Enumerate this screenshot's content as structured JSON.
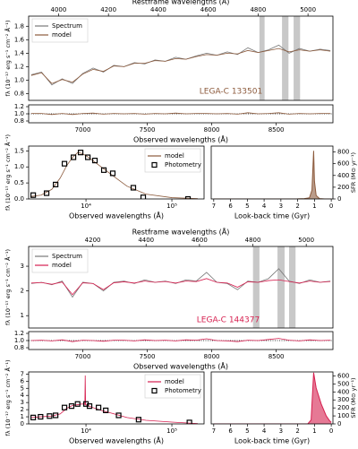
{
  "chart_data": [
    {
      "type": "line",
      "x2label": "Restframe wavelengths (Å)",
      "x2lim": [
        3880,
        5100
      ],
      "x2ticks": [
        4000,
        4200,
        4400,
        4600,
        4800,
        5000
      ],
      "ylabel": "fλ (10⁻¹⁷ erg s⁻¹ cm⁻² Å⁻¹)",
      "xlim": [
        6580,
        8940
      ],
      "ylim": [
        0.7,
        1.95
      ],
      "yticks": [
        0.8,
        {
          "value": 1,
          "label": "1.0"
        },
        1.2,
        1.4,
        1.6,
        1.8
      ],
      "annotation": "LEGA-C 133501",
      "annotation_color": "#8c5a3c",
      "spans": [
        [
          8370,
          8410
        ],
        [
          8545,
          8595
        ],
        [
          8635,
          8685
        ]
      ],
      "legend": "upper left",
      "x": [
        6600,
        6680,
        6760,
        6840,
        6920,
        7000,
        7080,
        7160,
        7240,
        7320,
        7400,
        7480,
        7560,
        7640,
        7720,
        7800,
        7880,
        7960,
        8040,
        8120,
        8200,
        8280,
        8360,
        8440,
        8520,
        8600,
        8680,
        8760,
        8840,
        8920
      ],
      "series": [
        {
          "name": "Spectrum",
          "color": "#777777",
          "style": "line",
          "values": [
            1.08,
            1.12,
            0.93,
            1.02,
            0.95,
            1.1,
            1.18,
            1.12,
            1.22,
            1.2,
            1.26,
            1.24,
            1.3,
            1.28,
            1.34,
            1.31,
            1.36,
            1.4,
            1.37,
            1.42,
            1.38,
            1.48,
            1.41,
            1.45,
            1.52,
            1.4,
            1.47,
            1.43,
            1.46,
            1.44
          ]
        },
        {
          "name": "model",
          "color": "#8c5a3c",
          "style": "line",
          "values": [
            1.07,
            1.11,
            0.95,
            1.01,
            0.97,
            1.09,
            1.16,
            1.13,
            1.21,
            1.2,
            1.25,
            1.25,
            1.29,
            1.28,
            1.32,
            1.31,
            1.35,
            1.38,
            1.37,
            1.4,
            1.39,
            1.44,
            1.41,
            1.44,
            1.47,
            1.42,
            1.45,
            1.43,
            1.45,
            1.43
          ]
        }
      ]
    },
    {
      "type": "line",
      "xlabel": "Observed wavelengths (Å)",
      "xlim": [
        6580,
        8940
      ],
      "xticks": [
        7000,
        7500,
        8000,
        8500
      ],
      "ylim": [
        0.75,
        1.25
      ],
      "yticks": [
        0.8,
        {
          "value": 1,
          "label": "1.0"
        },
        1.2
      ],
      "refline": 1,
      "x": [
        6600,
        6680,
        6760,
        6840,
        6920,
        7000,
        7080,
        7160,
        7240,
        7320,
        7400,
        7480,
        7560,
        7640,
        7720,
        7800,
        7880,
        7960,
        8040,
        8120,
        8200,
        8280,
        8360,
        8440,
        8520,
        8600,
        8680,
        8760,
        8840,
        8920
      ],
      "series": [
        {
          "color": "#8c5a3c",
          "style": "line",
          "values": [
            1.01,
            1.01,
            0.98,
            1.01,
            0.98,
            1.01,
            1.02,
            0.99,
            1.01,
            1.0,
            1.01,
            0.99,
            1.01,
            1.0,
            1.02,
            1.0,
            1.01,
            1.01,
            1.0,
            1.01,
            0.99,
            1.03,
            1.0,
            1.01,
            1.03,
            0.99,
            1.01,
            1.0,
            1.01,
            1.01
          ]
        }
      ]
    },
    {
      "type": "line",
      "xlabel": "Observed wavelengths (Å)",
      "ylabel": "fλ (10⁻¹⁷ erg s⁻¹ cm⁻² Å⁻¹)",
      "xscale": "log",
      "xlim": [
        2150,
        237000
      ],
      "xticks": [
        {
          "value": 10000,
          "label": "10⁴"
        },
        {
          "value": 100000,
          "label": "10⁵"
        }
      ],
      "ylim": [
        0,
        1.65
      ],
      "yticks": [
        {
          "value": 0,
          "label": "0.0"
        },
        0.5,
        {
          "value": 1,
          "label": "1.0"
        },
        1.5
      ],
      "legend": "upper right",
      "series": [
        {
          "name": "model",
          "color": "#8c5a3c",
          "style": "line",
          "x": [
            2300,
            3000,
            4000,
            5000,
            6000,
            7000,
            8000,
            9000,
            10000,
            12000,
            15000,
            20000,
            30000,
            50000,
            100000,
            200000
          ],
          "values": [
            0.08,
            0.12,
            0.3,
            0.65,
            1.05,
            1.3,
            1.45,
            1.42,
            1.35,
            1.2,
            1.0,
            0.75,
            0.4,
            0.15,
            0.04,
            0.01
          ]
        },
        {
          "name": "Photometry",
          "color": "#000000",
          "style": "markers",
          "x": [
            2430,
            3480,
            4430,
            5620,
            7150,
            8660,
            10500,
            12700,
            16150,
            20500,
            35600,
            46400,
            154000
          ],
          "values": [
            0.12,
            0.18,
            0.45,
            1.1,
            1.3,
            1.45,
            1.3,
            1.2,
            0.9,
            0.8,
            0.35,
            0.05,
            0.0
          ]
        }
      ]
    },
    {
      "type": "line",
      "xlabel": "Look-back time (Gyr)",
      "ylabel": "SFR (M⊙ yr⁻¹)",
      "yaxis": "right",
      "xlim": [
        7.15,
        -0.1
      ],
      "xticks": [
        7,
        6,
        5,
        4,
        3,
        2,
        1,
        0
      ],
      "ylim": [
        0,
        900
      ],
      "yticks": [
        0,
        200,
        400,
        600,
        800
      ],
      "series": [
        {
          "color": "#8c5a3c",
          "style": "line",
          "fill": true,
          "x": [
            7,
            6,
            5,
            4,
            3,
            2,
            1.6,
            1.3,
            1.15,
            1.05,
            1.0,
            0.9,
            0.7,
            0.4,
            0
          ],
          "values": [
            0,
            0,
            0,
            0,
            0,
            1,
            5,
            20,
            150,
            820,
            300,
            60,
            5,
            0,
            0
          ]
        }
      ]
    },
    {
      "type": "line",
      "x2label": "Restframe wavelengths (Å)",
      "x2lim": [
        3960,
        5100
      ],
      "x2ticks": [
        4200,
        4400,
        4600,
        4800,
        5000
      ],
      "ylabel": "fλ (10⁻¹⁷ erg s⁻¹ cm⁻² Å⁻¹)",
      "xlim": [
        6580,
        8940
      ],
      "ylim": [
        0.5,
        3.8
      ],
      "yticks": [
        1,
        2,
        3
      ],
      "annotation": "LEGA-C 144377",
      "annotation_color": "#d61f4f",
      "spans": [
        [
          8320,
          8370
        ],
        [
          8510,
          8565
        ],
        [
          8600,
          8650
        ]
      ],
      "legend": "upper left",
      "x": [
        6600,
        6680,
        6760,
        6840,
        6920,
        7000,
        7080,
        7160,
        7240,
        7320,
        7400,
        7480,
        7560,
        7640,
        7720,
        7800,
        7880,
        7960,
        8040,
        8120,
        8200,
        8280,
        8360,
        8440,
        8520,
        8600,
        8680,
        8760,
        8840,
        8920
      ],
      "series": [
        {
          "name": "Spectrum",
          "color": "#777777",
          "style": "line",
          "values": [
            2.3,
            2.35,
            2.25,
            2.4,
            1.75,
            2.35,
            2.3,
            2.0,
            2.35,
            2.4,
            2.3,
            2.45,
            2.35,
            2.4,
            2.3,
            2.45,
            2.4,
            2.75,
            2.35,
            2.3,
            2.05,
            2.4,
            2.35,
            2.5,
            2.9,
            2.4,
            2.3,
            2.45,
            2.35,
            2.4
          ]
        },
        {
          "name": "model",
          "color": "#d61f4f",
          "style": "line",
          "values": [
            2.32,
            2.34,
            2.27,
            2.36,
            1.85,
            2.33,
            2.3,
            2.05,
            2.33,
            2.37,
            2.32,
            2.4,
            2.35,
            2.38,
            2.32,
            2.4,
            2.38,
            2.5,
            2.35,
            2.32,
            2.15,
            2.37,
            2.35,
            2.42,
            2.45,
            2.38,
            2.32,
            2.4,
            2.35,
            2.38
          ]
        }
      ]
    },
    {
      "type": "line",
      "xlabel": "Observed wavelengths (Å)",
      "xlim": [
        6580,
        8940
      ],
      "xticks": [
        7000,
        7500,
        8000,
        8500
      ],
      "ylim": [
        0.75,
        1.25
      ],
      "yticks": [
        0.8,
        {
          "value": 1,
          "label": "1.0"
        },
        1.2
      ],
      "refline": 1,
      "x": [
        6600,
        6680,
        6760,
        6840,
        6920,
        7000,
        7080,
        7160,
        7240,
        7320,
        7400,
        7480,
        7560,
        7640,
        7720,
        7800,
        7880,
        7960,
        8040,
        8120,
        8200,
        8280,
        8360,
        8440,
        8520,
        8600,
        8680,
        8760,
        8840,
        8920
      ],
      "series": [
        {
          "color": "#d61f4f",
          "style": "line",
          "values": [
            1.0,
            1.01,
            0.99,
            1.02,
            0.97,
            1.01,
            1.0,
            0.98,
            1.01,
            1.01,
            0.99,
            1.02,
            1.0,
            1.01,
            0.99,
            1.02,
            1.01,
            1.05,
            1.0,
            0.99,
            0.97,
            1.01,
            1.0,
            1.03,
            1.06,
            1.01,
            0.99,
            1.02,
            1.0,
            1.01
          ]
        }
      ]
    },
    {
      "type": "line",
      "xlabel": "Observed wavelengths (Å)",
      "ylabel": "fλ (10⁻¹⁷ erg s⁻¹ cm⁻² Å⁻¹)",
      "xscale": "log",
      "xlim": [
        2150,
        237000
      ],
      "xticks": [
        {
          "value": 10000,
          "label": "10⁴"
        },
        {
          "value": 100000,
          "label": "10⁵"
        }
      ],
      "ylim": [
        0,
        7.3
      ],
      "yticks": [
        0,
        1,
        2,
        3,
        4,
        5,
        6,
        7
      ],
      "legend": "upper right",
      "series": [
        {
          "name": "model",
          "color": "#d61f4f",
          "style": "line",
          "x": [
            2300,
            3000,
            4000,
            5000,
            6000,
            7000,
            8000,
            9000,
            9700,
            9800,
            9900,
            12000,
            15000,
            20000,
            30000,
            50000,
            100000,
            200000
          ],
          "values": [
            0.9,
            1.0,
            1.1,
            1.4,
            2.2,
            2.6,
            2.7,
            2.8,
            2.75,
            6.8,
            2.7,
            2.3,
            1.9,
            1.5,
            0.9,
            0.5,
            0.25,
            0.05
          ]
        },
        {
          "name": "Photometry",
          "color": "#000000",
          "style": "markers",
          "x": [
            2430,
            2960,
            3770,
            4430,
            5620,
            6800,
            7990,
            10000,
            11000,
            14000,
            17000,
            24000,
            41000,
            160000
          ],
          "values": [
            0.9,
            1.0,
            1.1,
            1.2,
            2.3,
            2.5,
            2.8,
            2.8,
            2.5,
            2.3,
            1.9,
            1.2,
            0.6,
            0.2
          ]
        }
      ]
    },
    {
      "type": "line",
      "xlabel": "Look-back time (Gyr)",
      "ylabel": "SFR (M⊙ yr⁻¹)",
      "yaxis": "right",
      "xlim": [
        7.15,
        -0.1
      ],
      "xticks": [
        7,
        6,
        5,
        4,
        3,
        2,
        1,
        0
      ],
      "ylim": [
        0,
        650
      ],
      "yticks": [
        0,
        100,
        200,
        300,
        400,
        500,
        600
      ],
      "series": [
        {
          "color": "#d61f4f",
          "style": "line",
          "fill": true,
          "x": [
            7,
            5,
            3,
            1.6,
            1.4,
            1.2,
            1.05,
            0.9,
            0.6,
            0.3,
            0.1,
            0
          ],
          "values": [
            0,
            0,
            0,
            0,
            0,
            50,
            640,
            450,
            250,
            100,
            40,
            20
          ]
        }
      ]
    }
  ]
}
